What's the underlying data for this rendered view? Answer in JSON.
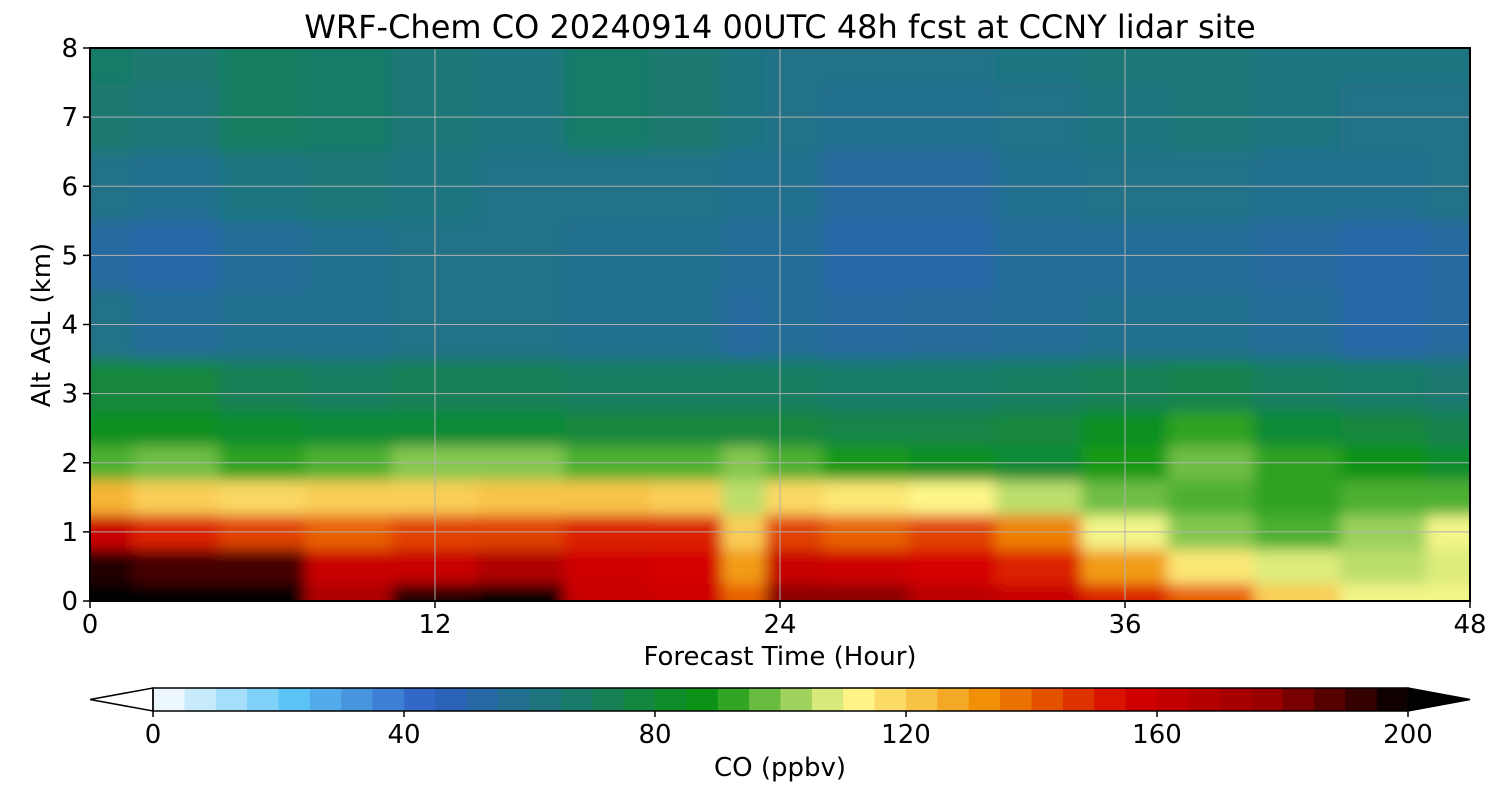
{
  "chart_data": {
    "type": "heatmap",
    "title": "WRF-Chem CO  20240914 00UTC 48h fcst at CCNY lidar site",
    "xlabel": "Forecast Time (Hour)",
    "ylabel": "Alt AGL (km)",
    "xlim": [
      0,
      48
    ],
    "ylim": [
      0,
      8
    ],
    "xticks": [
      0,
      12,
      24,
      36,
      48
    ],
    "yticks": [
      0,
      1,
      2,
      3,
      4,
      5,
      6,
      7,
      8
    ],
    "grid": true,
    "x": [
      0,
      3,
      6,
      9,
      12,
      15,
      18,
      21,
      23,
      24,
      27,
      30,
      33,
      36,
      39,
      42,
      45,
      48
    ],
    "y": [
      0,
      0.5,
      1.0,
      1.5,
      2.0,
      2.5,
      3.0,
      4.0,
      5.0,
      6.0,
      7.0,
      8.0
    ],
    "z": [
      [
        200,
        200,
        200,
        170,
        195,
        200,
        160,
        158,
        140,
        180,
        180,
        165,
        160,
        150,
        140,
        120,
        110,
        110
      ],
      [
        195,
        190,
        190,
        160,
        160,
        170,
        158,
        155,
        130,
        160,
        158,
        155,
        150,
        130,
        115,
        108,
        105,
        108
      ],
      [
        160,
        150,
        145,
        140,
        145,
        145,
        150,
        150,
        120,
        145,
        140,
        145,
        135,
        110,
        100,
        95,
        102,
        110
      ],
      [
        125,
        120,
        118,
        120,
        120,
        122,
        122,
        120,
        105,
        118,
        115,
        112,
        105,
        98,
        95,
        92,
        95,
        95
      ],
      [
        95,
        98,
        92,
        95,
        100,
        100,
        95,
        95,
        100,
        95,
        90,
        85,
        80,
        90,
        98,
        92,
        88,
        82
      ],
      [
        85,
        85,
        82,
        80,
        80,
        80,
        78,
        78,
        78,
        78,
        76,
        76,
        78,
        85,
        92,
        80,
        78,
        74
      ],
      [
        78,
        78,
        72,
        70,
        72,
        72,
        70,
        70,
        70,
        70,
        68,
        68,
        70,
        72,
        74,
        70,
        68,
        66
      ],
      [
        60,
        56,
        58,
        58,
        60,
        60,
        58,
        58,
        54,
        56,
        54,
        55,
        56,
        58,
        58,
        56,
        52,
        54
      ],
      [
        54,
        52,
        56,
        58,
        60,
        60,
        58,
        58,
        56,
        56,
        52,
        52,
        56,
        56,
        56,
        54,
        52,
        54
      ],
      [
        60,
        58,
        62,
        64,
        62,
        60,
        60,
        60,
        58,
        58,
        54,
        54,
        58,
        60,
        60,
        58,
        58,
        60
      ],
      [
        66,
        64,
        70,
        68,
        64,
        62,
        68,
        66,
        62,
        60,
        58,
        58,
        60,
        62,
        64,
        62,
        60,
        60
      ],
      [
        68,
        66,
        70,
        68,
        64,
        62,
        68,
        66,
        62,
        60,
        60,
        60,
        62,
        64,
        64,
        62,
        62,
        62
      ]
    ],
    "colorbar": {
      "label": "CO  (ppbv)",
      "min": 0,
      "max": 200,
      "step": 5,
      "ticks": [
        0,
        40,
        80,
        120,
        160,
        200
      ],
      "extend": "both",
      "orientation": "horizontal",
      "colors": [
        "#ffffff",
        "#5dc4f7",
        "#2e5fc4",
        "#1a7a6e",
        "#0b9410",
        "#fffa8f",
        "#f08c00",
        "#d40000",
        "#9a0000",
        "#000000"
      ]
    }
  }
}
